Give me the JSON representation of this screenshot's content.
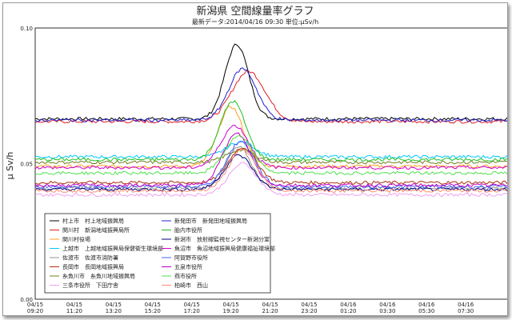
{
  "chart_data": {
    "type": "line",
    "title": "新潟県 空間線量率グラフ",
    "subtitle": "最新データ:2014/04/16 09:30  単位:μSv/h",
    "ylabel": "μ Sv/h",
    "xlabel": "",
    "ylim": [
      0,
      0.1
    ],
    "yticks": [
      "0.00",
      "0.05",
      "0.10"
    ],
    "xticks": [
      {
        "t": 0,
        "date": "04/15",
        "time": "09:20"
      },
      {
        "t": 2,
        "date": "04/15",
        "time": "11:20"
      },
      {
        "t": 4,
        "date": "04/15",
        "time": "13:20"
      },
      {
        "t": 6,
        "date": "04/15",
        "time": "15:20"
      },
      {
        "t": 8,
        "date": "04/15",
        "time": "17:20"
      },
      {
        "t": 10,
        "date": "04/15",
        "time": "19:20"
      },
      {
        "t": 12,
        "date": "04/15",
        "time": "21:20"
      },
      {
        "t": 14,
        "date": "04/15",
        "time": "23:20"
      },
      {
        "t": 16,
        "date": "04/16",
        "time": "01:20"
      },
      {
        "t": 18,
        "date": "04/16",
        "time": "03:30"
      },
      {
        "t": 20,
        "date": "04/16",
        "time": "05:30"
      },
      {
        "t": 22,
        "date": "04/16",
        "time": "07:30"
      }
    ],
    "xmax": 24.2,
    "grid": true,
    "legend_position": "bottom-left",
    "series": [
      {
        "name": "村上市　村上地域振興局",
        "color": "#000000",
        "base": 0.0665,
        "peak": 0.094,
        "tpeak": 10.3,
        "w": 0.85
      },
      {
        "name": "関川村　新潟地域振興局所",
        "color": "#e02020",
        "base": 0.0655,
        "peak": 0.084,
        "tpeak": 10.9,
        "w": 1.2
      },
      {
        "name": "関川村役場",
        "color": "#ffa020",
        "base": 0.049,
        "peak": 0.071,
        "tpeak": 10.0,
        "w": 0.9
      },
      {
        "name": "上越市　上越地域振興局保健衛生環境部",
        "color": "#00c8ff",
        "base": 0.0525,
        "peak": 0.058,
        "tpeak": 10.5,
        "w": 1.0
      },
      {
        "name": "佐渡市　佐渡市消防署",
        "color": "#909090",
        "base": 0.041,
        "peak": 0.056,
        "tpeak": 10.4,
        "w": 0.9
      },
      {
        "name": "長岡市　長岡地域振興局",
        "color": "#b03010",
        "base": 0.043,
        "peak": 0.056,
        "tpeak": 10.6,
        "w": 1.0
      },
      {
        "name": "糸魚川市　糸魚川地域振興局",
        "color": "#708020",
        "base": 0.0505,
        "peak": 0.055,
        "tpeak": 10.5,
        "w": 1.0
      },
      {
        "name": "三条市役所　下田庁舎",
        "color": "#f0a0f0",
        "base": 0.0385,
        "peak": 0.05,
        "tpeak": 10.6,
        "w": 1.0
      },
      {
        "name": "新発田市　新発田地域振興局",
        "color": "#2020d0",
        "base": 0.066,
        "peak": 0.085,
        "tpeak": 10.6,
        "w": 1.0
      },
      {
        "name": "胎内市役所",
        "color": "#20c020",
        "base": 0.0515,
        "peak": 0.073,
        "tpeak": 10.1,
        "w": 0.9
      },
      {
        "name": "新潟市　放射線監視センター新潟分室",
        "color": "#000080",
        "base": 0.0405,
        "peak": 0.053,
        "tpeak": 10.4,
        "w": 1.0
      },
      {
        "name": "魚沼市　魚沼地域振興局健康福祉環境部",
        "color": "#d000d0",
        "base": 0.0485,
        "peak": 0.064,
        "tpeak": 10.2,
        "w": 1.0
      },
      {
        "name": "阿賀野市役所",
        "color": "#4060ff",
        "base": 0.0415,
        "peak": 0.058,
        "tpeak": 10.5,
        "w": 1.0
      },
      {
        "name": "五泉市役所",
        "color": "#c000c0",
        "base": 0.042,
        "peak": 0.061,
        "tpeak": 10.3,
        "w": 1.0
      },
      {
        "name": "燕市役所",
        "color": "#50e050",
        "base": 0.0465,
        "peak": 0.06,
        "tpeak": 10.4,
        "w": 1.0
      },
      {
        "name": "柏崎市　西山",
        "color": "#ff8c70",
        "base": 0.04,
        "peak": 0.055,
        "tpeak": 10.6,
        "w": 1.0
      }
    ]
  }
}
